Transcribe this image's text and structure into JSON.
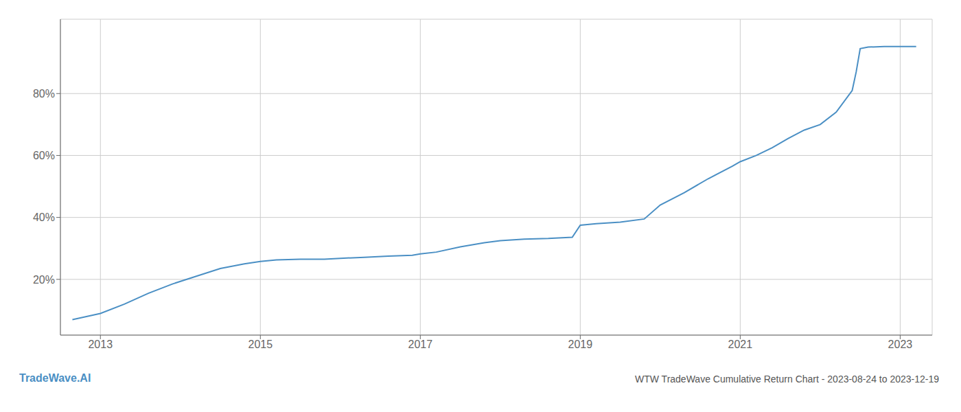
{
  "chart_data": {
    "type": "line",
    "title": "WTW TradeWave Cumulative Return Chart - 2023-08-24 to 2023-12-19",
    "annotations": [
      "TradeWave.AI"
    ],
    "color": "#4a8fc4",
    "grid": true,
    "xlim": [
      2012.5,
      2023.4
    ],
    "ylim": [
      0.02,
      1.04
    ],
    "xticks": [
      2013,
      2015,
      2017,
      2019,
      2021,
      2023
    ],
    "yticks": [
      {
        "value": 0.2,
        "label": "20%"
      },
      {
        "value": 0.4,
        "label": "40%"
      },
      {
        "value": 0.6,
        "label": "60%"
      },
      {
        "value": 0.8,
        "label": "80%"
      }
    ],
    "x": [
      2012.65,
      2013.0,
      2013.3,
      2013.6,
      2013.9,
      2014.2,
      2014.5,
      2014.8,
      2015.0,
      2015.2,
      2015.5,
      2015.8,
      2016.0,
      2016.3,
      2016.6,
      2016.9,
      2017.0,
      2017.2,
      2017.5,
      2017.8,
      2018.0,
      2018.3,
      2018.6,
      2018.9,
      2019.0,
      2019.2,
      2019.5,
      2019.8,
      2020.0,
      2020.3,
      2020.6,
      2020.9,
      2021.0,
      2021.2,
      2021.4,
      2021.6,
      2021.8,
      2022.0,
      2022.2,
      2022.4,
      2022.45,
      2022.5,
      2022.6,
      2022.8,
      2023.0,
      2023.2
    ],
    "values": [
      0.07,
      0.09,
      0.12,
      0.155,
      0.185,
      0.21,
      0.235,
      0.25,
      0.258,
      0.263,
      0.265,
      0.265,
      0.268,
      0.271,
      0.275,
      0.278,
      0.282,
      0.288,
      0.305,
      0.318,
      0.325,
      0.33,
      0.332,
      0.336,
      0.375,
      0.38,
      0.385,
      0.395,
      0.44,
      0.48,
      0.525,
      0.565,
      0.58,
      0.6,
      0.625,
      0.655,
      0.682,
      0.7,
      0.74,
      0.81,
      0.87,
      0.945,
      0.95,
      0.952,
      0.952,
      0.952
    ]
  }
}
